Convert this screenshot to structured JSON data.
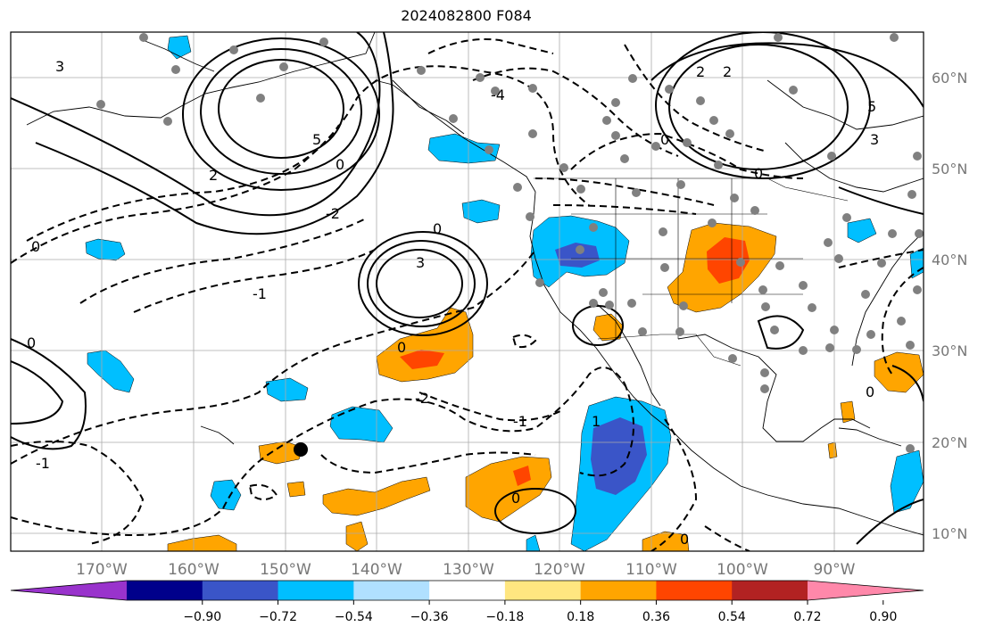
{
  "title": "2024082800 F084",
  "lat_labels": [
    "60°N",
    "50°N",
    "40°N",
    "30°N",
    "20°N",
    "10°N"
  ],
  "lon_labels": [
    "170°W",
    "160°W",
    "150°W",
    "140°W",
    "130°W",
    "120°W",
    "110°W",
    "100°W",
    "90°W"
  ],
  "colorbar": {
    "ticks": [
      "−0.90",
      "−0.72",
      "−0.54",
      "−0.36",
      "−0.18",
      "0.18",
      "0.36",
      "0.54",
      "0.72",
      "0.90"
    ],
    "colors": [
      "#9933cc",
      "#00008b",
      "#3a55c8",
      "#00bfff",
      "#b0e0ff",
      "#ffffff",
      "#ffe680",
      "#ffa500",
      "#ff4500",
      "#b22222",
      "#ff88aa"
    ]
  },
  "contour_labels": [
    "3",
    "2",
    "5",
    "0",
    "-2",
    "-4",
    "0",
    "2",
    "2",
    "0",
    "-1",
    "0",
    "3",
    "0",
    "-2",
    "-1",
    "1",
    "-1",
    "0",
    "0",
    "0",
    "0",
    "3",
    "5",
    "0"
  ],
  "colors": {
    "positive_fill": "#ffa500",
    "negative_fill": "#00bfff",
    "strong_negative": "#3a55c8",
    "strong_positive": "#ff4500"
  }
}
